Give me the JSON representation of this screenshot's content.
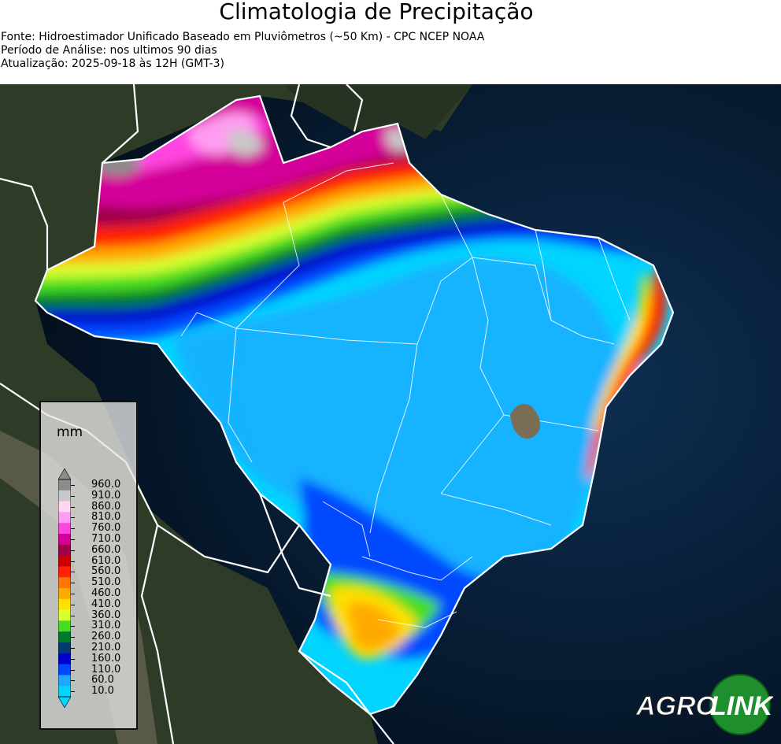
{
  "header": {
    "title": "Climatologia de Precipitação",
    "source": "Fonte: Hidroestimador Unificado Baseado em Pluviômetros (~50 Km) - CPC NCEP NOAA",
    "period": "Período de Análise: nos ultimos 90 dias",
    "updated": "Atualização: 2025-09-18 às 12H (GMT-3)"
  },
  "legend": {
    "unit": "mm",
    "levels": [
      "960.0",
      "910.0",
      "860.0",
      "810.0",
      "760.0",
      "710.0",
      "660.0",
      "610.0",
      "560.0",
      "510.0",
      "460.0",
      "410.0",
      "360.0",
      "310.0",
      "260.0",
      "210.0",
      "160.0",
      "110.0",
      "60.0",
      "10.0"
    ],
    "colors": [
      "#8c8c8c",
      "#c8c8c8",
      "#ffd6f5",
      "#ff9cf0",
      "#ff44e0",
      "#d4009a",
      "#a0004a",
      "#cc0000",
      "#ff2200",
      "#ff7700",
      "#ffaa00",
      "#ffe000",
      "#d8ff30",
      "#44dd22",
      "#007a2a",
      "#003a6e",
      "#0000cc",
      "#0048ff",
      "#1ea8ff",
      "#00d4ff"
    ]
  },
  "logo": {
    "part1": "AGRO",
    "part2": "LINK"
  },
  "colors": {
    "ocean": "#04142a",
    "land": "#2b3a26",
    "border": "#ffffff"
  }
}
